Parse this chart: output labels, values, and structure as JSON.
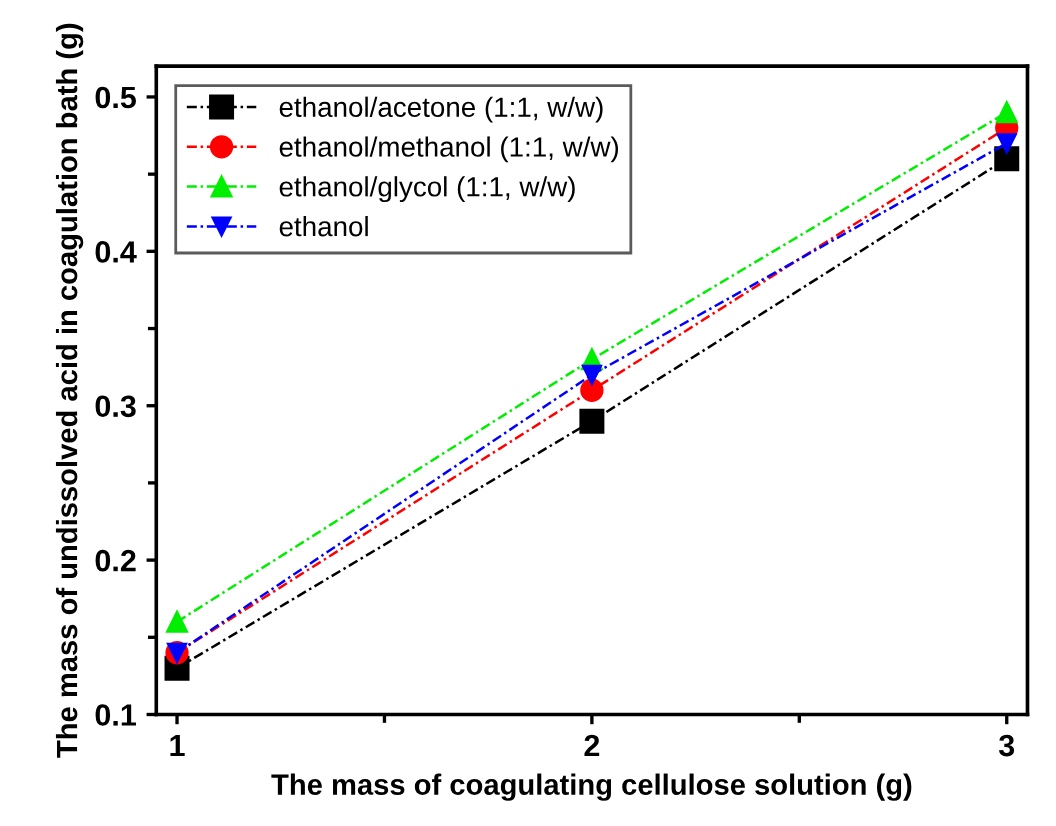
{
  "chart_data": {
    "type": "line",
    "xlabel": "The mass of coagulating cellulose solution (g)",
    "ylabel": "The mass of undissolved acid in coagulation bath (g)",
    "x": [
      1,
      2,
      3
    ],
    "series": [
      {
        "name": "ethanol/acetone (1:1, w/w)",
        "color": "#000000",
        "marker": "square",
        "values": [
          0.13,
          0.29,
          0.46
        ]
      },
      {
        "name": "ethanol/methanol (1:1, w/w)",
        "color": "#ff0000",
        "marker": "circle",
        "values": [
          0.14,
          0.31,
          0.48
        ]
      },
      {
        "name": "ethanol/glycol (1:1, w/w)",
        "color": "#00ee00",
        "marker": "triangle",
        "values": [
          0.16,
          0.33,
          0.49
        ]
      },
      {
        "name": "ethanol",
        "color": "#0000ff",
        "marker": "triangle_down",
        "values": [
          0.14,
          0.32,
          0.47
        ]
      }
    ],
    "xlim": [
      0.95,
      3.05
    ],
    "xticks": [
      1,
      2,
      3
    ],
    "ylim": [
      0.1,
      0.52
    ],
    "yticks": [
      0.1,
      0.2,
      0.3,
      0.4,
      0.5
    ],
    "line_style": "dashed",
    "grid": false,
    "legend": "top left"
  }
}
